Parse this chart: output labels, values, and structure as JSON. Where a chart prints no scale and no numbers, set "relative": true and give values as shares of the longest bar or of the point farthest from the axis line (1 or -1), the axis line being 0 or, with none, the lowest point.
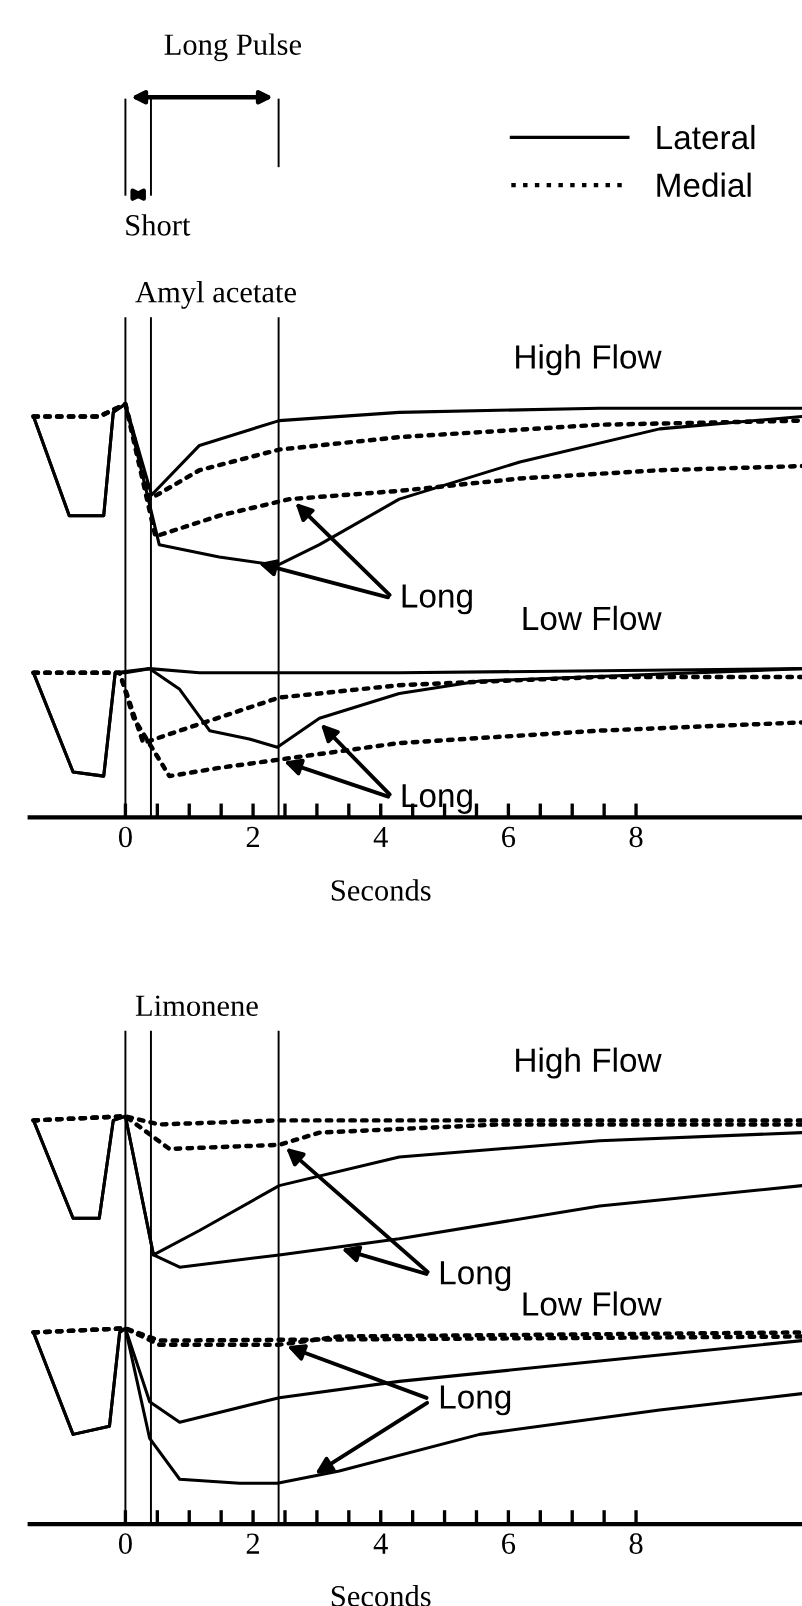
{
  "chart_data": [
    {
      "type": "line",
      "title": "Amyl acetate",
      "xlabel": "Seconds",
      "relative": true,
      "xlim": [
        -1.5,
        10.6
      ],
      "xticks": [
        0,
        {
          "value": 0.5,
          "label": null
        },
        {
          "value": 1,
          "label": null
        },
        {
          "value": 1.5,
          "label": null
        },
        2,
        {
          "value": 2.5,
          "label": null
        },
        {
          "value": 3,
          "label": null
        },
        {
          "value": 3.5,
          "label": null
        },
        4,
        {
          "value": 4.5,
          "label": null
        },
        {
          "value": 5,
          "label": null
        },
        {
          "value": 5.5,
          "label": null
        },
        6,
        {
          "value": 6.5,
          "label": null
        },
        {
          "value": 7,
          "label": null
        },
        {
          "value": 7.5,
          "label": null
        },
        8
      ],
      "legend": "top right",
      "tick_labels": "x",
      "annotations": [
        "Long Pulse",
        "Short",
        "High Flow",
        "Long",
        "Low Flow",
        "Long"
      ],
      "ref_lines": [
        {
          "axis": "x",
          "value": 0
        },
        {
          "axis": "x",
          "value": 0.4
        },
        {
          "axis": "x",
          "value": 2.4
        }
      ],
      "series": [
        {
          "name": "Lateral",
          "line_style": "solid",
          "color": "#000000",
          "x": [
            -1.44,
            -0.88,
            -0.34,
            -0.19,
            0,
            0.41,
            1.16,
            2.41,
            4.29,
            7.43,
            10.6
          ],
          "values": [
            0.97,
            0.73,
            0.73,
            0.98,
            1.0,
            0.78,
            0.9,
            0.96,
            0.98,
            0.99,
            0.99
          ]
        },
        {
          "line_style": "solid",
          "color": "#000000",
          "x": [
            -1.44,
            -0.88,
            -0.34,
            -0.19,
            0,
            0.53,
            1.47,
            2.38,
            3.04,
            4.29,
            6.18,
            8.37,
            10.6
          ],
          "values": [
            0.97,
            0.73,
            0.73,
            0.98,
            1.0,
            0.66,
            0.63,
            0.61,
            0.66,
            0.77,
            0.86,
            0.94,
            0.97
          ]
        },
        {
          "name": "Medial",
          "line_style": "dotted",
          "color": "#000000",
          "x": [
            -1.44,
            -0.41,
            0,
            0.38,
            1.16,
            2.41,
            4.29,
            7.43,
            10.6
          ],
          "values": [
            0.97,
            0.97,
            1.0,
            0.77,
            0.84,
            0.89,
            0.92,
            0.95,
            0.96
          ]
        },
        {
          "line_style": "dotted",
          "color": "#000000",
          "x": [
            -1.44,
            -0.41,
            0,
            0.47,
            1.47,
            2.57,
            4.29,
            6.18,
            8.37,
            10.6
          ],
          "values": [
            0.97,
            0.97,
            1.0,
            0.68,
            0.73,
            0.77,
            0.79,
            0.82,
            0.84,
            0.85
          ]
        },
        {
          "line_style": "solid",
          "color": "#000000",
          "x": [
            -1.44,
            -0.82,
            -0.34,
            -0.16,
            0.38,
            1.16,
            4.29,
            10.6
          ],
          "values": [
            0.35,
            0.11,
            0.1,
            0.35,
            0.36,
            0.35,
            0.35,
            0.36
          ]
        },
        {
          "line_style": "solid",
          "color": "#000000",
          "x": [
            -1.44,
            -0.82,
            -0.34,
            -0.16,
            0,
            0.38,
            0.85,
            1.32,
            1.94,
            2.38,
            3.04,
            4.29,
            5.55,
            10.6
          ],
          "values": [
            0.35,
            0.11,
            0.1,
            0.35,
            0.35,
            0.36,
            0.31,
            0.21,
            0.19,
            0.17,
            0.24,
            0.3,
            0.33,
            0.36
          ]
        },
        {
          "line_style": "dotted",
          "color": "#000000",
          "x": [
            -1.44,
            -0.09,
            0.28,
            0.85,
            2.41,
            4.29,
            7.43,
            10.6
          ],
          "values": [
            0.35,
            0.35,
            0.18,
            0.21,
            0.29,
            0.32,
            0.34,
            0.34
          ]
        },
        {
          "line_style": "dotted",
          "color": "#000000",
          "x": [
            -1.44,
            -0.09,
            0.13,
            0.69,
            1.47,
            2.41,
            4.29,
            7.43,
            10.6
          ],
          "values": [
            0.35,
            0.35,
            0.24,
            0.1,
            0.12,
            0.14,
            0.18,
            0.21,
            0.23
          ]
        }
      ]
    },
    {
      "type": "line",
      "title": "Limonene",
      "xlabel": "Seconds",
      "relative": true,
      "xlim": [
        -1.5,
        10.6
      ],
      "xticks": [
        0,
        {
          "value": 0.5,
          "label": null
        },
        {
          "value": 1,
          "label": null
        },
        {
          "value": 1.5,
          "label": null
        },
        2,
        {
          "value": 2.5,
          "label": null
        },
        {
          "value": 3,
          "label": null
        },
        {
          "value": 3.5,
          "label": null
        },
        4,
        {
          "value": 4.5,
          "label": null
        },
        {
          "value": 5,
          "label": null
        },
        {
          "value": 5.5,
          "label": null
        },
        6,
        {
          "value": 6.5,
          "label": null
        },
        {
          "value": 7,
          "label": null
        },
        {
          "value": 7.5,
          "label": null
        },
        8
      ],
      "tick_labels": "x",
      "annotations": [
        "High Flow",
        "Long",
        "Low Flow",
        "Long"
      ],
      "ref_lines": [
        {
          "axis": "x",
          "value": 0
        },
        {
          "axis": "x",
          "value": 0.4
        },
        {
          "axis": "x",
          "value": 2.4
        }
      ],
      "series": [
        {
          "line_style": "solid",
          "color": "#000000",
          "x": [
            -1.44,
            -0.82,
            -0.41,
            -0.19,
            0,
            0.44,
            1.16,
            2.41,
            4.29,
            7.43,
            10.6
          ],
          "values": [
            0.99,
            0.75,
            0.75,
            0.99,
            1.0,
            0.66,
            0.72,
            0.83,
            0.9,
            0.94,
            0.96
          ]
        },
        {
          "line_style": "solid",
          "color": "#000000",
          "x": [
            -1.44,
            -0.82,
            -0.41,
            -0.19,
            0,
            0.44,
            0.85,
            2.41,
            4.29,
            7.43,
            10.6
          ],
          "values": [
            0.99,
            0.75,
            0.75,
            0.99,
            1.0,
            0.66,
            0.63,
            0.66,
            0.7,
            0.78,
            0.83
          ]
        },
        {
          "line_style": "dotted",
          "color": "#000000",
          "x": [
            -1.44,
            0,
            0.53,
            2.41,
            10.6
          ],
          "values": [
            0.99,
            1.0,
            0.98,
            0.99,
            0.99
          ]
        },
        {
          "line_style": "dotted",
          "color": "#000000",
          "x": [
            -1.44,
            0,
            0.69,
            2.41,
            3.04,
            5.86,
            10.6
          ],
          "values": [
            0.99,
            1.0,
            0.92,
            0.93,
            0.96,
            0.98,
            0.98
          ]
        },
        {
          "line_style": "solid",
          "color": "#000000",
          "x": [
            -1.44,
            -0.82,
            -0.25,
            -0.09,
            0,
            0.38,
            0.85,
            2.41,
            4.29,
            7.43,
            10.6
          ],
          "values": [
            0.47,
            0.22,
            0.24,
            0.47,
            0.48,
            0.3,
            0.25,
            0.31,
            0.35,
            0.4,
            0.45
          ]
        },
        {
          "line_style": "solid",
          "color": "#000000",
          "x": [
            -1.44,
            -0.82,
            -0.25,
            -0.09,
            0,
            0.38,
            0.85,
            1.79,
            2.38,
            3.35,
            5.55,
            8.37,
            10.6
          ],
          "values": [
            0.47,
            0.22,
            0.24,
            0.47,
            0.48,
            0.21,
            0.11,
            0.1,
            0.1,
            0.13,
            0.22,
            0.28,
            0.32
          ]
        },
        {
          "line_style": "dotted",
          "color": "#000000",
          "x": [
            -1.44,
            0,
            0.53,
            10.6
          ],
          "values": [
            0.47,
            0.48,
            0.45,
            0.46
          ]
        },
        {
          "line_style": "dotted",
          "color": "#000000",
          "x": [
            -1.44,
            0,
            0.53,
            2.41,
            3.35,
            10.6
          ],
          "values": [
            0.47,
            0.48,
            0.44,
            0.44,
            0.46,
            0.47
          ]
        }
      ]
    }
  ]
}
